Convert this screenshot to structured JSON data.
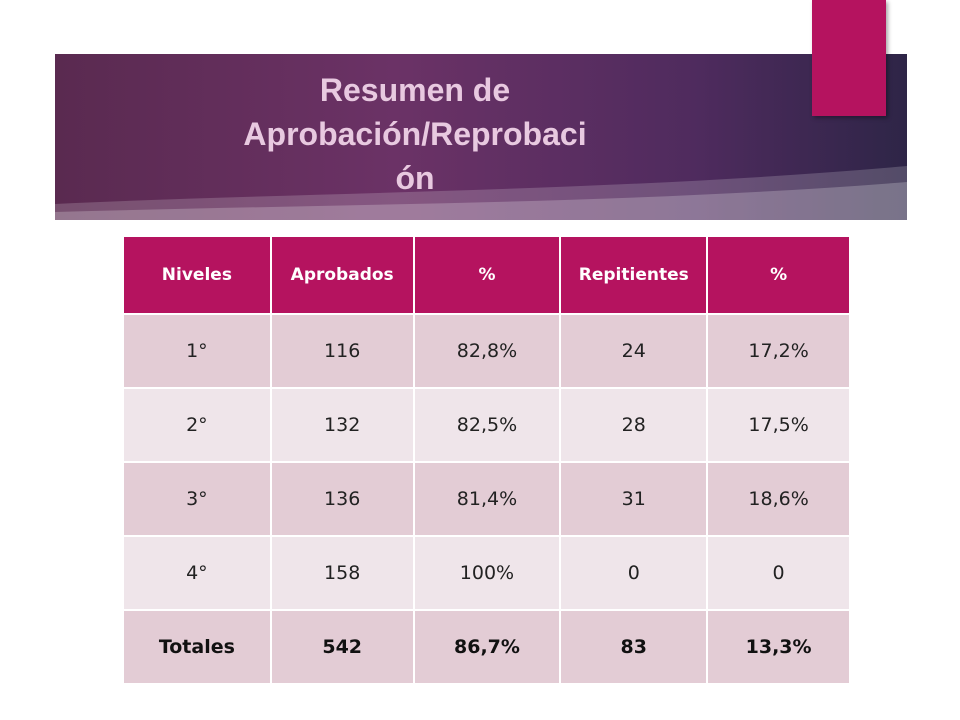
{
  "title": "Resumen de Aprobación/Reprobaci ón",
  "title_lines": [
    "Resumen de",
    "Aprobación/Reprobaci",
    "ón"
  ],
  "colors": {
    "header": "#b5135f",
    "accent": "#b5135f",
    "band": "#5a2a50"
  },
  "table": {
    "headers": [
      "Niveles",
      "Aprobados",
      "%",
      "Repitientes",
      "%"
    ],
    "rows": [
      [
        "1°",
        "116",
        "82,8%",
        "24",
        "17,2%"
      ],
      [
        "2°",
        "132",
        "82,5%",
        "28",
        "17,5%"
      ],
      [
        "3°",
        "136",
        "81,4%",
        "31",
        "18,6%"
      ],
      [
        "4°",
        "158",
        "100%",
        "0",
        "0"
      ]
    ],
    "totals": [
      "Totales",
      "542",
      "86,7%",
      "83",
      "13,3%"
    ]
  }
}
